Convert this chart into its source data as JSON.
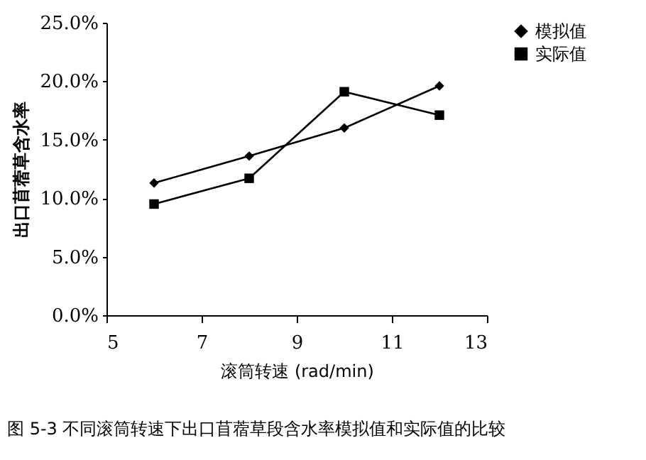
{
  "chart_data": {
    "type": "line",
    "xlabel": "滚筒转速 (rad/min)",
    "ylabel": "出口苜蓿草含水率",
    "x": [
      6,
      8,
      10,
      12
    ],
    "series": [
      {
        "name": "模拟值",
        "color": "#000000",
        "marker": "diamond",
        "values": [
          11.3,
          13.6,
          16.0,
          19.6
        ]
      },
      {
        "name": "实际值",
        "color": "#000000",
        "marker": "square",
        "values": [
          9.5,
          11.7,
          19.1,
          17.1
        ]
      }
    ],
    "xlim": [
      5,
      13
    ],
    "xticks": [
      5,
      7,
      9,
      11,
      13
    ],
    "ylim": [
      0,
      25
    ],
    "yticks": [
      {
        "value": 0,
        "label": "0.0%"
      },
      {
        "value": 5,
        "label": "5.0%"
      },
      {
        "value": 10,
        "label": "10.0%"
      },
      {
        "value": 15,
        "label": "15.0%"
      },
      {
        "value": 20,
        "label": "20.0%"
      },
      {
        "value": 25,
        "label": "25.0%"
      }
    ],
    "grid": false,
    "legend": "right",
    "line_style": "solid",
    "annotations": [
      "图 5-3 不同滚筒转速下出口苜蓿草段含水率模拟值和实际值的比较"
    ]
  }
}
